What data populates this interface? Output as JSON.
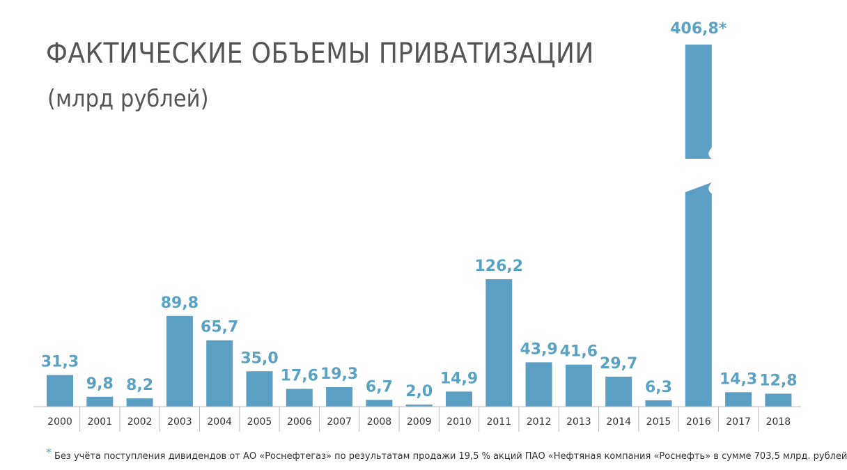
{
  "title": "ФАКТИЧЕСКИЕ ОБЪЕМЫ ПРИВАТИЗАЦИИ",
  "subtitle": "(млрд рублей)",
  "footnote": {
    "marker": "*",
    "text": "Без учёта поступления дивидендов от АО «Роснефтегаз» по результатам продажи 19,5 % акций ПАО «Нефтяная компания «Роснефть» в сумме 703,5 млрд. рублей"
  },
  "colors": {
    "bar": "#5b9fc4",
    "label": "#5aa2c4",
    "axis": "#bbbbbb",
    "text": "#333333"
  },
  "chart_data": {
    "type": "bar",
    "title": "ФАКТИЧЕСКИЕ ОБЪЕМЫ ПРИВАТИЗАЦИИ",
    "ylabel": "",
    "xlabel": "",
    "categories": [
      "2000",
      "2001",
      "2002",
      "2003",
      "2004",
      "2005",
      "2006",
      "2007",
      "2008",
      "2009",
      "2010",
      "2011",
      "2012",
      "2013",
      "2014",
      "2015",
      "2016",
      "2017",
      "2018"
    ],
    "values": [
      31.3,
      9.8,
      8.2,
      89.8,
      65.7,
      35.0,
      17.6,
      19.3,
      6.7,
      2.0,
      14.9,
      126.2,
      43.9,
      41.6,
      29.7,
      6.3,
      406.8,
      14.3,
      12.8
    ],
    "value_labels": [
      "31,3",
      "9,8",
      "8,2",
      "89,8",
      "65,7",
      "35,0",
      "17,6",
      "19,3",
      "6,7",
      "2,0",
      "14,9",
      "126,2",
      "43,9",
      "41,6",
      "29,7",
      "6,3",
      "406,8*",
      "14,3",
      "12,8"
    ],
    "broken_axis_categories": [
      "2016"
    ],
    "grid": false,
    "legend": "none"
  }
}
